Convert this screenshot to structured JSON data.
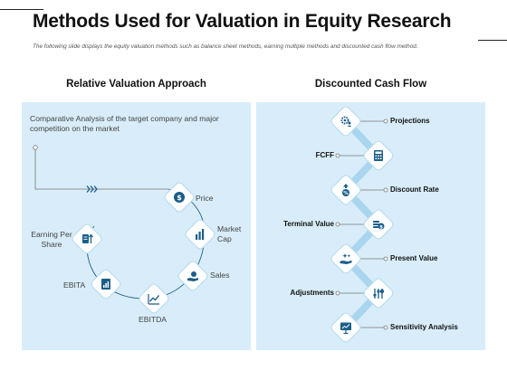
{
  "page": {
    "title": "Methods Used for Valuation in Equity Research",
    "subtitle": "The following slide displays the equity valuation methods such as balance sheet methods, earning multiple methods and discounted cash flow method."
  },
  "left_section": {
    "heading": "Relative Valuation Approach",
    "description": "Comparative Analysis of the target company and major competition on the market",
    "items": [
      {
        "label": "Price",
        "icon": "dollar-badge-icon"
      },
      {
        "label": "Market Cap",
        "icon": "bar-chart-icon"
      },
      {
        "label": "Sales",
        "icon": "hand-money-icon"
      },
      {
        "label": "EBITDA",
        "icon": "growth-chart-icon"
      },
      {
        "label": "EBITA",
        "icon": "report-icon"
      },
      {
        "label": "Earning Per Share",
        "icon": "document-arrow-icon"
      }
    ]
  },
  "right_section": {
    "heading": "Discounted Cash Flow",
    "items": [
      {
        "label": "Projections",
        "icon": "gear-people-icon"
      },
      {
        "label": "FCFF",
        "icon": "calculator-icon"
      },
      {
        "label": "Discount Rate",
        "icon": "percent-arrow-icon"
      },
      {
        "label": "Terminal Value",
        "icon": "coins-icon"
      },
      {
        "label": "Present Value",
        "icon": "hand-sparkle-icon"
      },
      {
        "label": "Adjustments",
        "icon": "sliders-chart-icon"
      },
      {
        "label": "Sensitivity Analysis",
        "icon": "presentation-board-icon"
      }
    ]
  },
  "colors": {
    "accent": "#1a5e8a",
    "panel": "#d8edf9",
    "connector": "#a9d5ee"
  }
}
